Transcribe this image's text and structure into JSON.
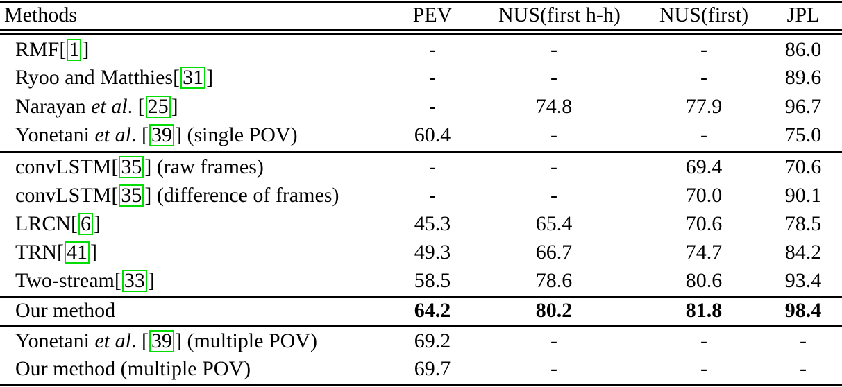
{
  "header": {
    "methods": "Methods",
    "pev": "PEV",
    "nus_hh": "NUS(first h-h)",
    "nus_first": "NUS(first)",
    "jpl": "JPL"
  },
  "rows": [
    {
      "pre": "RMF[",
      "ref": "1",
      "post": "]",
      "ital": "",
      "post2": "",
      "pev": "-",
      "nus_hh": "-",
      "nus_first": "-",
      "jpl": "86.0"
    },
    {
      "pre": "Ryoo and Matthies[",
      "ref": "31",
      "post": "]",
      "pev": "-",
      "nus_hh": "-",
      "nus_first": "-",
      "jpl": "89.6"
    },
    {
      "pre": "Narayan ",
      "ital": "et al",
      "mid": ". [",
      "ref": "25",
      "post": "]",
      "pev": "-",
      "nus_hh": "74.8",
      "nus_first": "77.9",
      "jpl": "96.7"
    },
    {
      "pre": "Yonetani ",
      "ital": "et al",
      "mid": ". [",
      "ref": "39",
      "post": "] (single POV)",
      "pev": "60.4",
      "nus_hh": "-",
      "nus_first": "-",
      "jpl": "75.0"
    },
    {
      "pre": "convLSTM[",
      "ref": "35",
      "post": "] (raw frames)",
      "pev": "-",
      "nus_hh": "-",
      "nus_first": "69.4",
      "jpl": "70.6"
    },
    {
      "pre": "convLSTM[",
      "ref": "35",
      "post": "] (difference of frames)",
      "pev": "-",
      "nus_hh": "-",
      "nus_first": "70.0",
      "jpl": "90.1"
    },
    {
      "pre": "LRCN[",
      "ref": "6",
      "post": "]",
      "pev": "45.3",
      "nus_hh": "65.4",
      "nus_first": "70.6",
      "jpl": "78.5"
    },
    {
      "pre": "TRN[",
      "ref": "41",
      "post": "]",
      "pev": "49.3",
      "nus_hh": "66.7",
      "nus_first": "74.7",
      "jpl": "84.2"
    },
    {
      "pre": "Two-stream[",
      "ref": "33",
      "post": "]",
      "pev": "58.5",
      "nus_hh": "78.6",
      "nus_first": "80.6",
      "jpl": "93.4"
    },
    {
      "pre": "Our method",
      "pev": "64.2",
      "nus_hh": "80.2",
      "nus_first": "81.8",
      "jpl": "98.4"
    },
    {
      "pre": "Yonetani ",
      "ital": "et al",
      "mid": ". [",
      "ref": "39",
      "post": "] (multiple POV)",
      "pev": "69.2",
      "nus_hh": "-",
      "nus_first": "-",
      "jpl": "-"
    },
    {
      "pre": "Our method (multiple POV)",
      "pev": "69.7",
      "nus_hh": "-",
      "nus_first": "-",
      "jpl": "-"
    }
  ]
}
